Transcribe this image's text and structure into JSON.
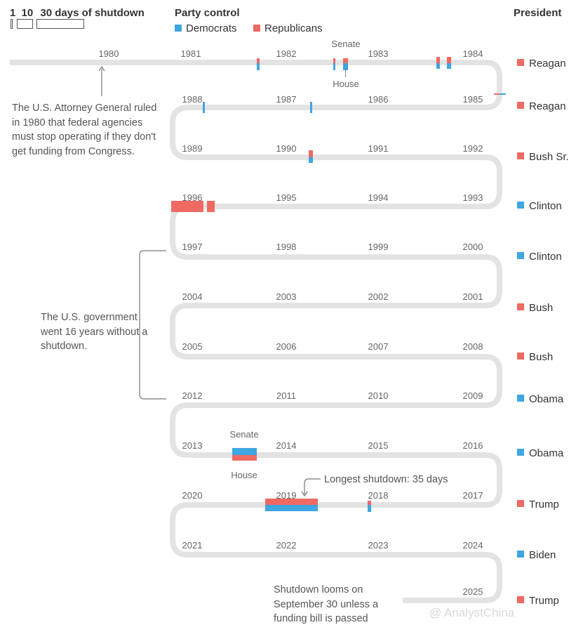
{
  "header": {
    "scale_one": "1",
    "scale_ten": "10",
    "scale_title": "30 days of shutdown",
    "party_title": "Party control",
    "dem_label": "Democrats",
    "rep_label": "Republicans",
    "president_title": "President"
  },
  "colors": {
    "democrat": "#3ea6e0",
    "republican": "#ee6a63",
    "track": "#e3e3e3"
  },
  "years": [
    "1980",
    "1981",
    "1982",
    "1983",
    "1984",
    "1985",
    "1986",
    "1987",
    "1988",
    "1989",
    "1990",
    "1991",
    "1992",
    "1993",
    "1994",
    "1995",
    "1996",
    "1997",
    "1998",
    "1999",
    "2000",
    "2001",
    "2002",
    "2003",
    "2004",
    "2005",
    "2006",
    "2007",
    "2008",
    "2009",
    "2010",
    "2011",
    "2012",
    "2013",
    "2014",
    "2015",
    "2016",
    "2017",
    "2018",
    "2019",
    "2020",
    "2021",
    "2022",
    "2023",
    "2024",
    "2025"
  ],
  "presidents": [
    {
      "name": "Reagan",
      "party": "R"
    },
    {
      "name": "Reagan",
      "party": "R"
    },
    {
      "name": "Bush Sr.",
      "party": "R"
    },
    {
      "name": "Clinton",
      "party": "D"
    },
    {
      "name": "Clinton",
      "party": "D"
    },
    {
      "name": "Bush",
      "party": "R"
    },
    {
      "name": "Bush",
      "party": "R"
    },
    {
      "name": "Obama",
      "party": "D"
    },
    {
      "name": "Obama",
      "party": "D"
    },
    {
      "name": "Trump",
      "party": "R"
    },
    {
      "name": "Biden",
      "party": "D"
    },
    {
      "name": "Trump",
      "party": "R"
    }
  ],
  "annotations": {
    "senate_top": "Senate",
    "house_top": "House",
    "senate_2013": "Senate",
    "house_2013": "House",
    "longest": "Longest shutdown: 35 days",
    "note_1980": "The U.S. Attorney General ruled in 1980 that federal agencies must stop operating if they don't get funding from Congress.",
    "note_gap": "The U.S. government went 16 years without a shutdown.",
    "note_2025": "Shutdown looms on September 30 unless a funding bill is passed"
  },
  "watermark": "@ AnalystChina"
}
